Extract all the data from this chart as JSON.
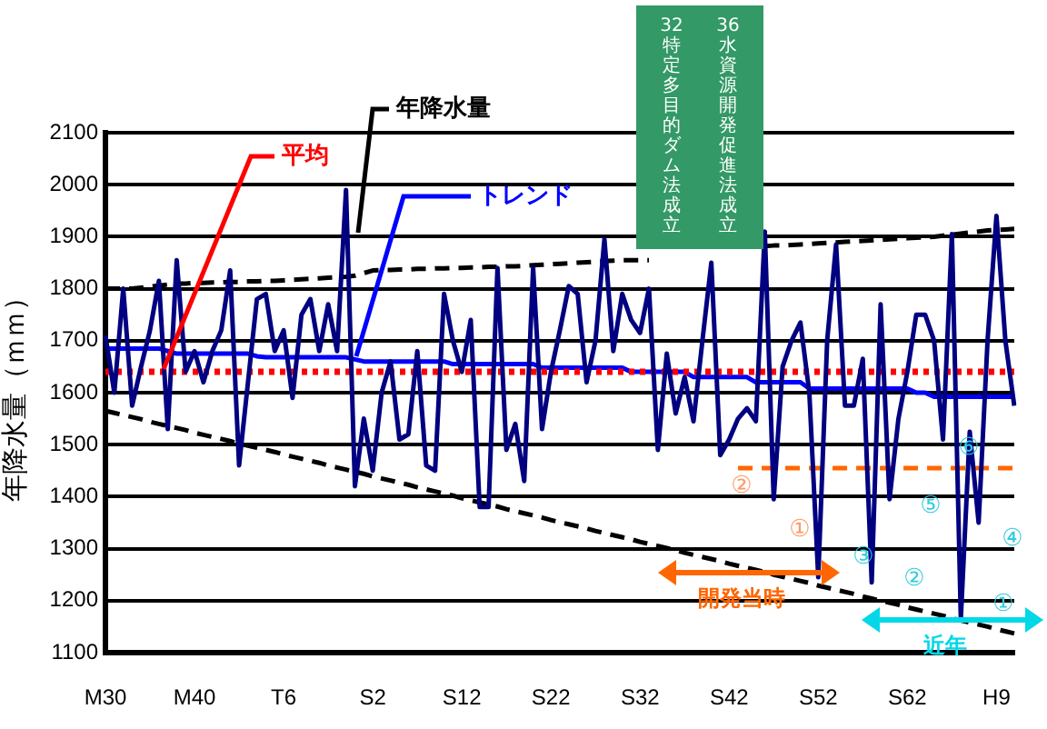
{
  "chart_data": {
    "type": "line",
    "ylabel": "年降水量（ｍｍ）",
    "categories": [
      "M30",
      null,
      null,
      null,
      null,
      null,
      null,
      null,
      null,
      null,
      "M40",
      null,
      null,
      null,
      null,
      null,
      null,
      null,
      null,
      null,
      "T6",
      null,
      null,
      null,
      null,
      null,
      null,
      null,
      null,
      null,
      "S2",
      null,
      null,
      null,
      null,
      null,
      null,
      null,
      null,
      null,
      "S12",
      null,
      null,
      null,
      null,
      null,
      null,
      null,
      null,
      null,
      "S22",
      null,
      null,
      null,
      null,
      null,
      null,
      null,
      null,
      null,
      "S32",
      null,
      null,
      null,
      null,
      null,
      null,
      null,
      null,
      null,
      "S42",
      null,
      null,
      null,
      null,
      null,
      null,
      null,
      null,
      null,
      "S52",
      null,
      null,
      null,
      null,
      null,
      null,
      null,
      null,
      null,
      "S62",
      null,
      null,
      null,
      null,
      null,
      null,
      null,
      null,
      null,
      "H9",
      null,
      null
    ],
    "ylim": [
      1100,
      2100
    ],
    "yticks": [
      1100,
      1200,
      1300,
      1400,
      1500,
      1600,
      1700,
      1800,
      1900,
      2000,
      2100
    ],
    "grid": "y",
    "legend": false,
    "marker": "none",
    "series": [
      {
        "name": "年降水量",
        "color": "#000080",
        "line_style": "solid",
        "values": [
          1710,
          1600,
          1800,
          1575,
          1650,
          1720,
          1815,
          1530,
          1855,
          1640,
          1680,
          1620,
          1680,
          1720,
          1835,
          1460,
          1620,
          1780,
          1790,
          1680,
          1720,
          1590,
          1750,
          1780,
          1680,
          1770,
          1680,
          1990,
          1420,
          1550,
          1450,
          1600,
          1660,
          1510,
          1520,
          1680,
          1460,
          1450,
          1790,
          1700,
          1640,
          1740,
          1380,
          1380,
          1840,
          1490,
          1540,
          1430,
          1840,
          1530,
          1640,
          1720,
          1805,
          1790,
          1620,
          1700,
          1895,
          1680,
          1790,
          1740,
          1715,
          1800,
          1490,
          1675,
          1560,
          1630,
          1545,
          1700,
          1850,
          1480,
          1510,
          1550,
          1570,
          1545,
          1910,
          1395,
          1650,
          1700,
          1735,
          1600,
          1245,
          1700,
          1885,
          1575,
          1575,
          1665,
          1235,
          1770,
          1395,
          1550,
          1640,
          1750,
          1750,
          1700,
          1510,
          1905,
          1165,
          1525,
          1350,
          1700,
          1940,
          1700,
          1575
        ]
      },
      {
        "name": "平均",
        "color": "#ff0000",
        "line_style": "dotted",
        "values": [
          1640,
          1640,
          1640,
          1640,
          1640,
          1640,
          1640,
          1640,
          1640,
          1640,
          1640,
          1640,
          1640,
          1640,
          1640,
          1640,
          1640,
          1640,
          1640,
          1640,
          1640,
          1640,
          1640,
          1640,
          1640,
          1640,
          1640,
          1640,
          1640,
          1640,
          1640,
          1640,
          1640,
          1640,
          1640,
          1640,
          1640,
          1640,
          1640,
          1640,
          1640,
          1640,
          1640,
          1640,
          1640,
          1640,
          1640,
          1640,
          1640,
          1640,
          1640,
          1640,
          1640,
          1640,
          1640,
          1640,
          1640,
          1640,
          1640,
          1640,
          1640,
          1640,
          1640,
          1640,
          1640,
          1640,
          1640,
          1640,
          1640,
          1640,
          1640,
          1640,
          1640,
          1640,
          1640,
          1640,
          1640,
          1640,
          1640,
          1640,
          1640,
          1640,
          1640,
          1640,
          1640,
          1640,
          1640,
          1640,
          1640,
          1640,
          1640,
          1640,
          1640,
          1640,
          1640,
          1640,
          1640,
          1640,
          1640,
          1640,
          1640,
          1640,
          1640
        ]
      },
      {
        "name": "トレンド",
        "color": "#0000ff",
        "line_style": "solid",
        "values": [
          1685,
          1685,
          1685,
          1685,
          1685,
          1685,
          1685,
          1680,
          1675,
          1675,
          1675,
          1675,
          1675,
          1675,
          1675,
          1675,
          1675,
          1670,
          1668,
          1668,
          1668,
          1668,
          1668,
          1668,
          1668,
          1668,
          1668,
          1668,
          1664,
          1660,
          1660,
          1660,
          1660,
          1660,
          1660,
          1660,
          1660,
          1660,
          1660,
          1655,
          1655,
          1655,
          1655,
          1655,
          1655,
          1655,
          1655,
          1655,
          1655,
          1648,
          1648,
          1648,
          1648,
          1648,
          1648,
          1648,
          1648,
          1648,
          1648,
          1640,
          1640,
          1640,
          1640,
          1640,
          1640,
          1640,
          1630,
          1630,
          1630,
          1630,
          1630,
          1630,
          1630,
          1620,
          1620,
          1620,
          1620,
          1620,
          1620,
          1608,
          1608,
          1608,
          1608,
          1608,
          1608,
          1608,
          1608,
          1608,
          1608,
          1608,
          1608,
          1600,
          1600,
          1592,
          1592,
          1592,
          1592,
          1592,
          1592,
          1592,
          1592,
          1592,
          1592
        ]
      },
      {
        "color": "#000000",
        "line_style": "dashed",
        "values": [
          1800,
          1800,
          1800,
          1800,
          1802,
          1804,
          1806,
          1808,
          1810,
          1810,
          1811,
          1811,
          1812,
          1812,
          1813,
          1813,
          1814,
          1814,
          1815,
          1815,
          1816,
          1817,
          1818,
          1819,
          1820,
          1821,
          1822,
          1823,
          1825,
          1830,
          1835,
          1836,
          1836,
          1837,
          1837,
          1838,
          1838,
          1839,
          1839,
          1840,
          1840,
          1841,
          1841,
          1842,
          1842,
          1843,
          1843,
          1844,
          1845,
          1846,
          1847,
          1848,
          1849,
          1850,
          1851,
          1852,
          1853,
          1854,
          1855,
          1855,
          1855,
          1855,
          null,
          null,
          null,
          null,
          null,
          null,
          null,
          null,
          null,
          null,
          null,
          null,
          1882,
          1883,
          1883,
          1884,
          1885,
          1886,
          1887,
          1888,
          1889,
          1890,
          1891,
          1892,
          1893,
          1894,
          1895,
          1896,
          1897,
          1898,
          1899,
          1900,
          1902,
          1904,
          1906,
          1908,
          1910,
          1912,
          1913,
          1914,
          1915
        ]
      },
      {
        "color": "#000000",
        "line_style": "dashed",
        "values": [
          1565,
          1561,
          1557,
          1553,
          1549,
          1544,
          1540,
          1536,
          1532,
          1528,
          1523,
          1519,
          1515,
          1511,
          1507,
          1502,
          1498,
          1494,
          1490,
          1486,
          1481,
          1477,
          1473,
          1469,
          1465,
          1460,
          1456,
          1452,
          1448,
          1444,
          1439,
          1435,
          1431,
          1427,
          1423,
          1418,
          1414,
          1410,
          1406,
          1402,
          1397,
          1393,
          1389,
          1385,
          1381,
          1376,
          1372,
          1368,
          1364,
          1360,
          1355,
          1351,
          1347,
          1343,
          1339,
          1334,
          1330,
          1326,
          1322,
          1318,
          1313,
          1309,
          1305,
          1301,
          1297,
          1292,
          1288,
          1284,
          1280,
          1276,
          1271,
          1267,
          1263,
          1259,
          1255,
          1250,
          1246,
          1242,
          1238,
          1234,
          1229,
          1225,
          1221,
          1217,
          1213,
          1208,
          1204,
          1200,
          1196,
          1192,
          1187,
          1183,
          1179,
          1175,
          1171,
          1166,
          1162,
          1158,
          1154,
          1150,
          1145,
          1141,
          1137
        ]
      },
      {
        "color": "#ff6600",
        "line_style": "dashed",
        "values": [
          null,
          null,
          null,
          null,
          null,
          null,
          null,
          null,
          null,
          null,
          null,
          null,
          null,
          null,
          null,
          null,
          null,
          null,
          null,
          null,
          null,
          null,
          null,
          null,
          null,
          null,
          null,
          null,
          null,
          null,
          null,
          null,
          null,
          null,
          null,
          null,
          null,
          null,
          null,
          null,
          null,
          null,
          null,
          null,
          null,
          null,
          null,
          null,
          null,
          null,
          null,
          null,
          null,
          null,
          null,
          null,
          null,
          null,
          null,
          null,
          null,
          null,
          null,
          null,
          null,
          null,
          null,
          null,
          null,
          null,
          null,
          1455,
          1455,
          1455,
          1455,
          1455,
          1455,
          1455,
          1455,
          1455,
          1455,
          1455,
          1455,
          1455,
          1455,
          1455,
          1455,
          1455,
          1455,
          1455,
          1455,
          1455,
          1455,
          1455,
          1455,
          1455,
          1455,
          1455,
          1455,
          1455,
          1455,
          1455,
          1455
        ]
      }
    ],
    "annotations": [
      "開発当時",
      "近年",
      "32 特定多目的ダム法成立",
      "36 水資源開発促進法成立",
      "②",
      "①",
      "③",
      "②",
      "①",
      "④",
      "⑤",
      "⑥"
    ]
  }
}
